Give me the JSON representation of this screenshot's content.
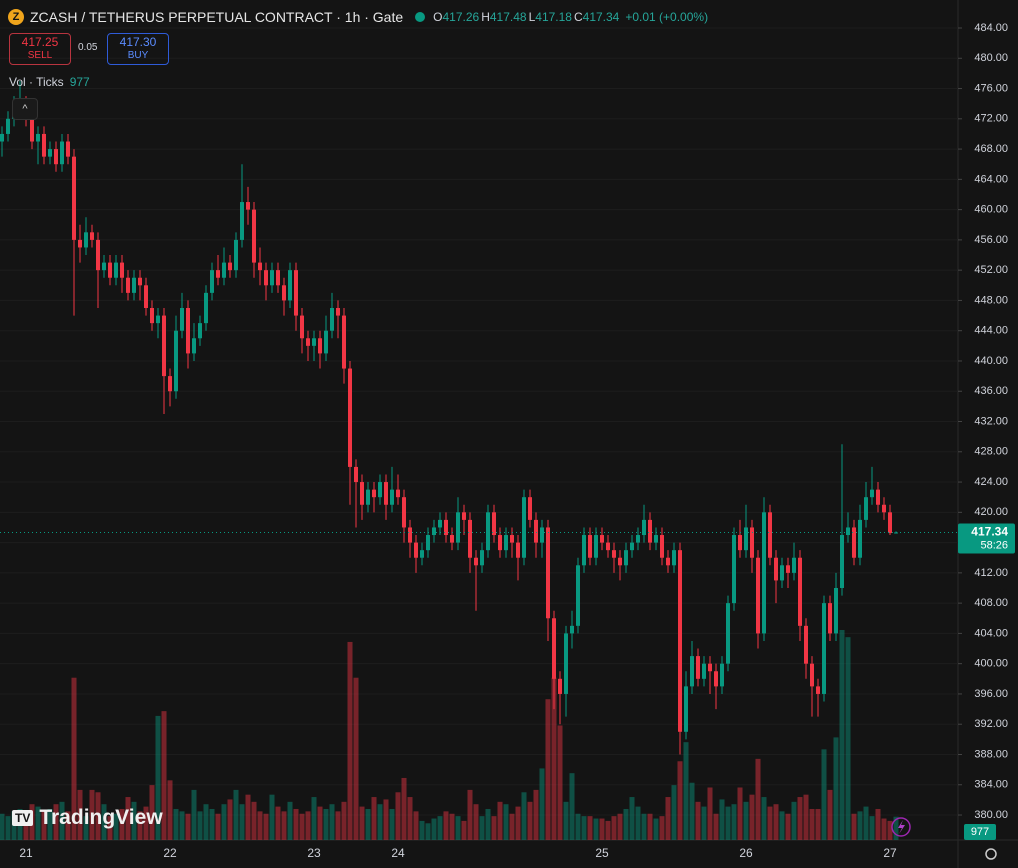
{
  "header": {
    "title": "ZCASH / TETHERUS PERPETUAL CONTRACT · 1h · Gate",
    "o_label": "O",
    "h_label": "H",
    "l_label": "L",
    "c_label": "C",
    "change": "+0.01 (+0.00%)"
  },
  "order_panel": {
    "sell_price": "417.25",
    "sell_label": "SELL",
    "spread": "0.05",
    "buy_price": "417.30",
    "buy_label": "BUY"
  },
  "volume_label": "Vol · Ticks",
  "countdown": "58:26",
  "watermark": "TradingView",
  "chart_data": {
    "type": "candlestick",
    "categories": [
      null,
      null,
      null,
      null,
      "21",
      null,
      null,
      null,
      null,
      null,
      null,
      null,
      null,
      null,
      null,
      null,
      null,
      null,
      null,
      null,
      null,
      null,
      null,
      null,
      null,
      null,
      null,
      null,
      "22",
      null,
      null,
      null,
      null,
      null,
      null,
      null,
      null,
      null,
      null,
      null,
      null,
      null,
      null,
      null,
      null,
      null,
      null,
      null,
      null,
      null,
      null,
      null,
      "23",
      null,
      null,
      null,
      null,
      null,
      null,
      null,
      null,
      null,
      null,
      null,
      null,
      null,
      "24",
      null,
      null,
      null,
      null,
      null,
      null,
      null,
      null,
      null,
      null,
      null,
      null,
      null,
      null,
      null,
      null,
      null,
      null,
      null,
      null,
      null,
      null,
      null,
      null,
      null,
      null,
      null,
      null,
      null,
      null,
      null,
      null,
      null,
      "25",
      null,
      null,
      null,
      null,
      null,
      null,
      null,
      null,
      null,
      null,
      null,
      null,
      null,
      null,
      null,
      null,
      null,
      null,
      null,
      null,
      null,
      null,
      null,
      "26",
      null,
      null,
      null,
      null,
      null,
      null,
      null,
      null,
      null,
      null,
      null,
      null,
      null,
      null,
      null,
      null,
      null,
      null,
      null,
      null,
      null,
      null,
      null,
      "27",
      null
    ],
    "open": [
      469,
      470,
      472,
      473,
      474,
      472,
      469,
      470,
      467,
      468,
      466,
      469,
      467,
      456,
      455,
      457,
      456,
      452,
      453,
      451,
      453,
      451,
      449,
      451,
      450,
      447,
      445,
      446,
      438,
      436,
      444,
      447,
      441,
      443,
      445,
      449,
      452,
      451,
      453,
      452,
      456,
      461,
      460,
      453,
      452,
      450,
      452,
      450,
      448,
      452,
      446,
      443,
      442,
      443,
      441,
      444,
      447,
      446,
      439,
      426,
      424,
      421,
      423,
      422,
      424,
      421,
      423,
      422,
      418,
      416,
      414,
      415,
      417,
      418,
      419,
      417,
      416,
      420,
      419,
      414,
      413,
      415,
      420,
      417,
      415,
      417,
      416,
      414,
      422,
      419,
      416,
      418,
      406,
      398,
      396,
      404,
      405,
      413,
      417,
      414,
      417,
      416,
      415,
      414,
      413,
      415,
      416,
      417,
      419,
      416,
      417,
      414,
      413,
      415,
      391,
      397,
      401,
      398,
      400,
      399,
      397,
      400,
      408,
      417,
      415,
      418,
      414,
      404,
      420,
      414,
      411,
      413,
      412,
      414,
      405,
      400,
      397,
      396,
      408,
      404,
      410,
      417,
      418,
      414,
      419,
      422,
      423,
      421,
      420,
      417.26
    ],
    "high": [
      471,
      473,
      475,
      477,
      475,
      473,
      471,
      471,
      469,
      469,
      470,
      470,
      468,
      458,
      459,
      458,
      457,
      454,
      454,
      454,
      454,
      452,
      452,
      452,
      451,
      448,
      447,
      447,
      439,
      446,
      449,
      448,
      445,
      446,
      450,
      453,
      454,
      455,
      454,
      457,
      466,
      463,
      461,
      455,
      453,
      453,
      453,
      451,
      453,
      453,
      447,
      444,
      444,
      444,
      446,
      449,
      448,
      447,
      440,
      427,
      425,
      424,
      424,
      425,
      425,
      426,
      425,
      423,
      419,
      417,
      416,
      418,
      419,
      420,
      420,
      418,
      422,
      421,
      420,
      415,
      416,
      421,
      421,
      418,
      418,
      418,
      417,
      423,
      423,
      420,
      419,
      419,
      407,
      399,
      405,
      407,
      414,
      418,
      418,
      418,
      418,
      417,
      416,
      415,
      416,
      417,
      418,
      421,
      420,
      418,
      418,
      415,
      416,
      416,
      399,
      403,
      402,
      401,
      401,
      400,
      401,
      409,
      418,
      419,
      421,
      419,
      415,
      422,
      421,
      415,
      414,
      414,
      416,
      415,
      406,
      401,
      398,
      409,
      409,
      412,
      429,
      420,
      419,
      421,
      424,
      426,
      424,
      422,
      421,
      417.48
    ],
    "low": [
      467,
      469,
      471,
      472,
      471,
      468,
      466,
      466,
      466,
      465,
      465,
      466,
      446,
      453,
      454,
      455,
      447,
      451,
      450,
      450,
      449,
      448,
      448,
      448,
      446,
      444,
      443,
      433,
      434,
      435,
      443,
      439,
      440,
      442,
      444,
      448,
      450,
      450,
      451,
      451,
      455,
      458,
      451,
      450,
      448,
      449,
      449,
      446,
      447,
      444,
      441,
      440,
      440,
      439,
      440,
      443,
      443,
      437,
      421,
      418,
      419,
      420,
      420,
      421,
      419,
      420,
      421,
      416,
      414,
      412,
      413,
      414,
      416,
      417,
      416,
      415,
      415,
      417,
      412,
      407,
      412,
      414,
      416,
      414,
      414,
      414,
      411,
      413,
      418,
      414,
      414,
      403,
      394,
      392,
      393,
      402,
      404,
      412,
      413,
      413,
      415,
      414,
      412,
      411,
      412,
      414,
      415,
      416,
      415,
      415,
      413,
      412,
      412,
      388,
      390,
      396,
      397,
      397,
      396,
      394,
      396,
      399,
      407,
      414,
      414,
      412,
      402,
      403,
      413,
      408,
      410,
      410,
      411,
      403,
      398,
      393,
      393,
      395,
      403,
      403,
      409,
      416,
      413,
      413,
      418,
      421,
      420,
      419,
      417,
      417.18
    ],
    "close": [
      470,
      472,
      473,
      474,
      472,
      469,
      470,
      467,
      468,
      466,
      469,
      467,
      456,
      455,
      457,
      456,
      452,
      453,
      451,
      453,
      451,
      449,
      451,
      450,
      447,
      445,
      446,
      438,
      436,
      444,
      447,
      441,
      443,
      445,
      449,
      452,
      451,
      453,
      452,
      456,
      461,
      460,
      453,
      452,
      450,
      452,
      450,
      448,
      452,
      446,
      443,
      442,
      443,
      441,
      444,
      447,
      446,
      439,
      426,
      424,
      421,
      423,
      422,
      424,
      421,
      423,
      422,
      418,
      416,
      414,
      415,
      417,
      418,
      419,
      417,
      416,
      420,
      419,
      414,
      413,
      415,
      420,
      417,
      415,
      417,
      416,
      414,
      422,
      419,
      416,
      418,
      406,
      398,
      396,
      404,
      405,
      413,
      417,
      414,
      417,
      416,
      415,
      414,
      413,
      415,
      416,
      417,
      419,
      416,
      417,
      414,
      413,
      415,
      391,
      397,
      401,
      398,
      400,
      399,
      397,
      400,
      408,
      417,
      415,
      418,
      414,
      404,
      420,
      414,
      411,
      413,
      412,
      414,
      405,
      400,
      397,
      396,
      408,
      404,
      410,
      417,
      418,
      414,
      419,
      422,
      423,
      421,
      420,
      417.26,
      417.34
    ],
    "volume": [
      1100,
      1000,
      1200,
      1300,
      900,
      1500,
      1400,
      1200,
      1300,
      1500,
      1600,
      1200,
      6800,
      2100,
      1000,
      2100,
      2000,
      1500,
      1000,
      1100,
      1300,
      1800,
      1600,
      1200,
      1400,
      2300,
      5200,
      5400,
      2500,
      1300,
      1200,
      1100,
      2100,
      1200,
      1500,
      1300,
      1100,
      1500,
      1700,
      2100,
      1500,
      1900,
      1600,
      1200,
      1100,
      1900,
      1400,
      1200,
      1600,
      1300,
      1100,
      1200,
      1800,
      1400,
      1300,
      1500,
      1200,
      1600,
      8300,
      6800,
      1400,
      1300,
      1800,
      1500,
      1700,
      1300,
      2000,
      2600,
      1800,
      1200,
      800,
      700,
      900,
      1000,
      1200,
      1100,
      1000,
      800,
      2100,
      1500,
      1000,
      1300,
      1000,
      1600,
      1500,
      1100,
      1400,
      2000,
      1600,
      2100,
      3000,
      5900,
      6800,
      4800,
      1600,
      2800,
      1100,
      1000,
      1000,
      900,
      900,
      800,
      1000,
      1100,
      1300,
      1800,
      1400,
      1100,
      1100,
      900,
      1000,
      1800,
      2300,
      3300,
      4100,
      2400,
      1600,
      1400,
      2200,
      1100,
      1700,
      1400,
      1500,
      2200,
      1600,
      1900,
      3400,
      1800,
      1400,
      1500,
      1200,
      1100,
      1600,
      1800,
      1900,
      1300,
      1300,
      3800,
      2100,
      4300,
      8800,
      8500,
      1100,
      1200,
      1400,
      1000,
      1300,
      900,
      800,
      977
    ],
    "up_color": "#089981",
    "down_color": "#f23645",
    "ylim": [
      376.7,
      487.7
    ],
    "yticks": [
      {
        "value": 380,
        "label": "380.00"
      },
      {
        "value": 384,
        "label": "384.00"
      },
      {
        "value": 388,
        "label": "388.00"
      },
      {
        "value": 392,
        "label": "392.00"
      },
      {
        "value": 396,
        "label": "396.00"
      },
      {
        "value": 400,
        "label": "400.00"
      },
      {
        "value": 404,
        "label": "404.00"
      },
      {
        "value": 408,
        "label": "408.00"
      },
      {
        "value": 412,
        "label": "412.00"
      },
      {
        "value": 416,
        "label": "416.00"
      },
      {
        "value": 420,
        "label": "420.00"
      },
      {
        "value": 424,
        "label": "424.00"
      },
      {
        "value": 428,
        "label": "428.00"
      },
      {
        "value": 432,
        "label": "432.00"
      },
      {
        "value": 436,
        "label": "436.00"
      },
      {
        "value": 440,
        "label": "440.00"
      },
      {
        "value": 444,
        "label": "444.00"
      },
      {
        "value": 448,
        "label": "448.00"
      },
      {
        "value": 452,
        "label": "452.00"
      },
      {
        "value": 456,
        "label": "456.00"
      },
      {
        "value": 460,
        "label": "460.00"
      },
      {
        "value": 464,
        "label": "464.00"
      },
      {
        "value": 468,
        "label": "468.00"
      },
      {
        "value": 472,
        "label": "472.00"
      },
      {
        "value": 476,
        "label": "476.00"
      },
      {
        "value": 480,
        "label": "480.00"
      },
      {
        "value": 484,
        "label": "484.00"
      }
    ],
    "grid": true
  }
}
